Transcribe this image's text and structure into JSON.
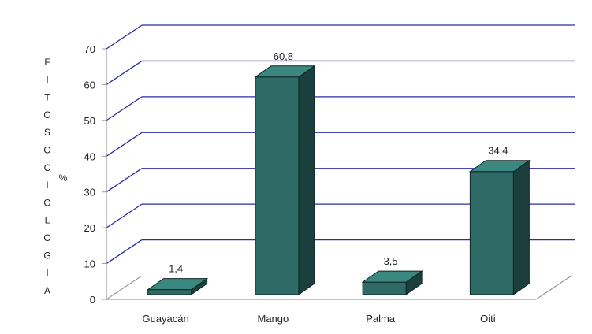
{
  "chart_data": {
    "type": "bar",
    "categories": [
      "Guayacán",
      "Mango",
      "Palma",
      "Oiti"
    ],
    "values": [
      1.4,
      60.8,
      3.5,
      34.4
    ],
    "data_labels": [
      "1,4",
      "60,8",
      "3,5",
      "34,4"
    ],
    "ylabel": "FITOSOCIOLOGIA",
    "yunit": "%",
    "yticks": [
      "0",
      "10",
      "20",
      "30",
      "40",
      "50",
      "60",
      "70"
    ],
    "ylim": [
      0,
      70
    ],
    "grid": true,
    "legend": "none",
    "style": "3d-column",
    "colors": {
      "bar_front": "#2e6b66",
      "bar_top": "#3d8781",
      "bar_side": "#1b3f3c",
      "bar_edge": "#0f2523",
      "gridline": "#2b2ba8",
      "axis": "#9a9a9a"
    }
  }
}
